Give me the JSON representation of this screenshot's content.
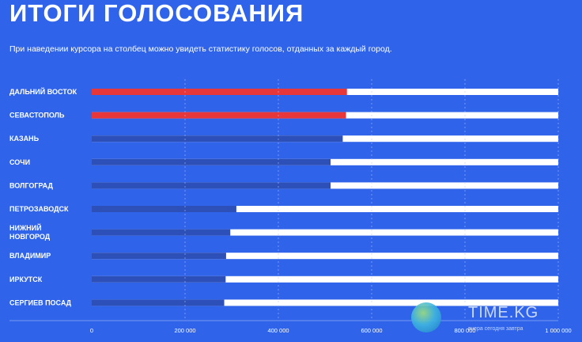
{
  "header": {
    "title": "ИТОГИ ГОЛОСОВАНИЯ",
    "subtitle": "При наведении курсора на столбец можно увидеть статистику голосов, отданных за каждый город."
  },
  "colors": {
    "background": "#2f63ea",
    "highlight_bar": "#e8373a",
    "normal_bar": "#2c4fb8",
    "track": "#ffffff"
  },
  "chart_data": {
    "type": "bar",
    "orientation": "horizontal",
    "categories": [
      "ДАЛЬНИЙ ВОСТОК",
      "СЕВАСТОПОЛЬ",
      "КАЗАНЬ",
      "СОЧИ",
      "ВОЛГОГРАД",
      "ПЕТРОЗАВОДСК",
      "НИЖНИЙ НОВГОРОД",
      "ВЛАДИМИР",
      "ИРКУТСК",
      "СЕРГИЕВ ПОСАД"
    ],
    "values": [
      547000,
      545000,
      538000,
      512000,
      512000,
      310000,
      297000,
      288000,
      287000,
      284000
    ],
    "highlighted": [
      true,
      true,
      false,
      false,
      false,
      false,
      false,
      false,
      false,
      false
    ],
    "xlim": [
      0,
      1000000
    ],
    "xticks": [
      0,
      200000,
      400000,
      600000,
      800000,
      1000000
    ],
    "xtick_labels": [
      "0",
      "200 000",
      "400 000",
      "600 000",
      "800 000",
      "1 000 000"
    ],
    "grid": true
  },
  "watermark": {
    "brand": "TIME.KG",
    "tagline": "вчера сегодня завтра"
  }
}
